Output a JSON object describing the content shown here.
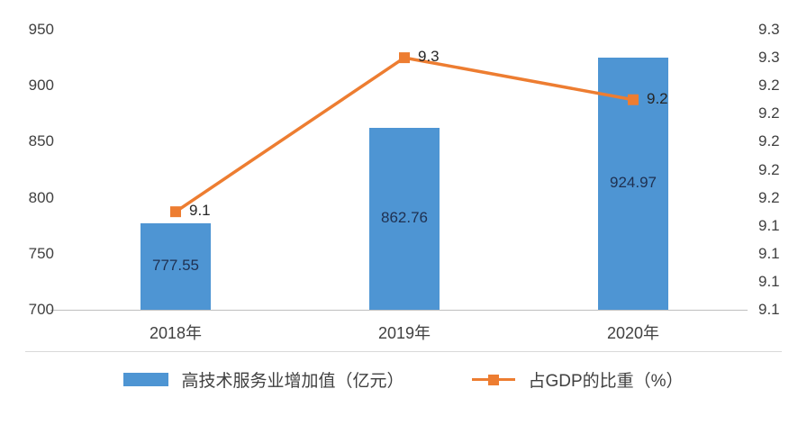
{
  "chart_data": {
    "type": "combo",
    "title": "",
    "grid": false,
    "legend_position": "bottom",
    "categories": [
      "2018年",
      "2019年",
      "2020年"
    ],
    "series": [
      {
        "name": "高技术服务业增加值（亿元）",
        "type": "bar",
        "axis": "left",
        "values": [
          777.55,
          862.76,
          924.97
        ],
        "labels": [
          "777.55",
          "862.76",
          "924.97"
        ],
        "color": "#4e95d3"
      },
      {
        "name": "占GDP的比重（%）",
        "type": "line",
        "axis": "right",
        "values": [
          9.1,
          9.3,
          9.2
        ],
        "labels": [
          "9.1",
          "9.3",
          "9.2"
        ],
        "values_plotted_estimate": [
          9.15,
          9.26,
          9.23
        ],
        "color": "#ed7d31"
      }
    ],
    "axis_left": {
      "min": 700,
      "max": 950,
      "tick_labels": [
        "950",
        "900",
        "850",
        "800",
        "750",
        "700"
      ]
    },
    "axis_right": {
      "min": 9.08,
      "max": 9.28,
      "tick_labels": [
        "9.3",
        "9.3",
        "9.2",
        "9.2",
        "9.2",
        "9.2",
        "9.2",
        "9.1",
        "9.1",
        "9.1",
        "9.1"
      ]
    },
    "colors": {
      "axis_text": "#404040",
      "bar_label": "#1f3050",
      "line_label": "#262626",
      "axis_line": "#bfbfbf"
    }
  }
}
